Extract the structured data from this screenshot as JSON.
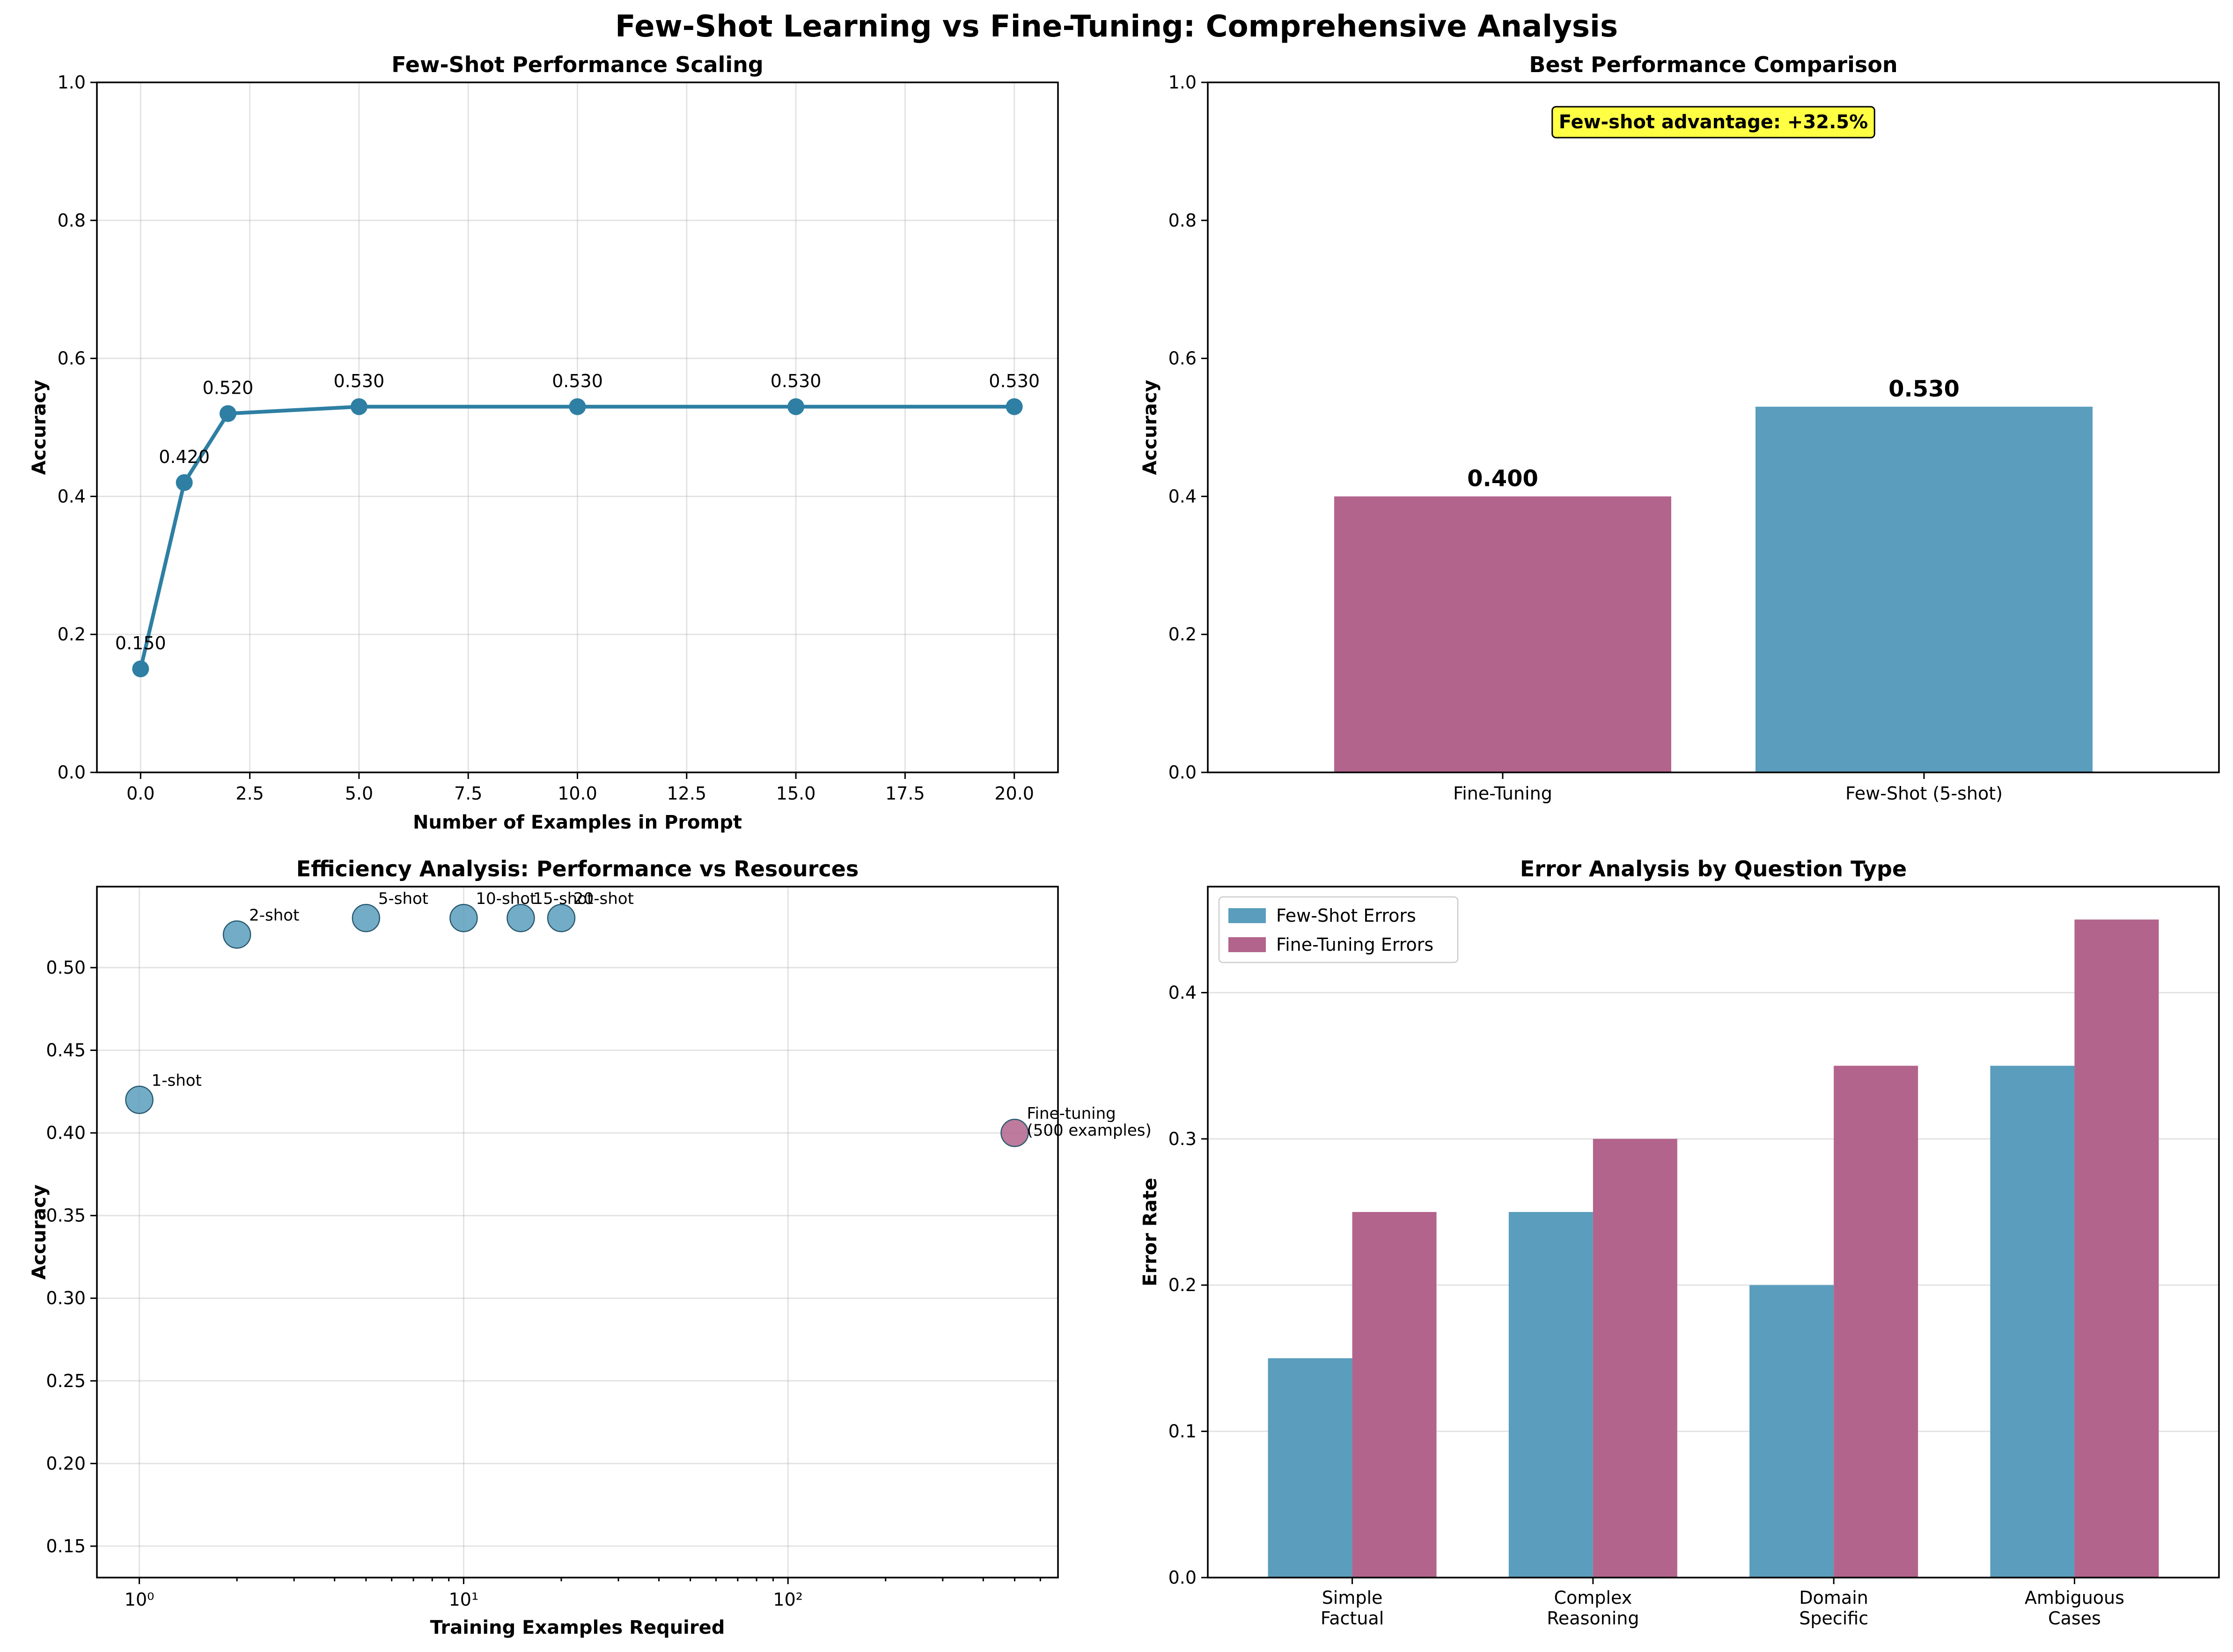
{
  "title": "Few-Shot Learning vs Fine-Tuning: Comprehensive Analysis",
  "colors": {
    "few_shot": "#5a9dbd",
    "few_shot_line": "#2e7fa3",
    "fine_tuning": "#b3648c",
    "highlight_box": "#ffff44"
  },
  "chart_data": [
    {
      "id": "scaling",
      "type": "line",
      "title": "Few-Shot Performance Scaling",
      "xlabel": "Number of Examples in Prompt",
      "ylabel": "Accuracy",
      "x": [
        0,
        1,
        2,
        5,
        10,
        15,
        20
      ],
      "y": [
        0.15,
        0.42,
        0.52,
        0.53,
        0.53,
        0.53,
        0.53
      ],
      "point_labels": [
        "0.150",
        "0.420",
        "0.520",
        "0.530",
        "0.530",
        "0.530",
        "0.530"
      ],
      "xlim": [
        -1,
        21
      ],
      "ylim": [
        0,
        1
      ],
      "xticks": [
        0,
        2.5,
        5,
        7.5,
        10,
        12.5,
        15,
        17.5,
        20
      ],
      "xtick_labels": [
        "0.0",
        "2.5",
        "5.0",
        "7.5",
        "10.0",
        "12.5",
        "15.0",
        "17.5",
        "20.0"
      ],
      "yticks": [
        0,
        0.2,
        0.4,
        0.6,
        0.8,
        1.0
      ],
      "ytick_labels": [
        "0.0",
        "0.2",
        "0.4",
        "0.6",
        "0.8",
        "1.0"
      ],
      "grid": true
    },
    {
      "id": "best",
      "type": "bar",
      "title": "Best Performance Comparison",
      "ylabel": "Accuracy",
      "categories": [
        "Fine-Tuning",
        "Few-Shot (5-shot)"
      ],
      "values": [
        0.4,
        0.53
      ],
      "value_labels": [
        "0.400",
        "0.530"
      ],
      "bar_colors": [
        "fine_tuning",
        "few_shot"
      ],
      "annotation": "Few-shot advantage: +32.5%",
      "ylim": [
        0,
        1
      ],
      "yticks": [
        0,
        0.2,
        0.4,
        0.6,
        0.8,
        1.0
      ],
      "ytick_labels": [
        "0.0",
        "0.2",
        "0.4",
        "0.6",
        "0.8",
        "1.0"
      ]
    },
    {
      "id": "efficiency",
      "type": "scatter",
      "title": "Efficiency Analysis: Performance vs Resources",
      "xlabel": "Training Examples Required",
      "ylabel": "Accuracy",
      "xscale": "log",
      "points": [
        {
          "x": 1,
          "y": 0.42,
          "label": "1-shot",
          "group": "few_shot"
        },
        {
          "x": 2,
          "y": 0.52,
          "label": "2-shot",
          "group": "few_shot"
        },
        {
          "x": 5,
          "y": 0.53,
          "label": "5-shot",
          "group": "few_shot"
        },
        {
          "x": 10,
          "y": 0.53,
          "label": "10-shot",
          "group": "few_shot"
        },
        {
          "x": 15,
          "y": 0.53,
          "label": "15-shot",
          "group": "few_shot"
        },
        {
          "x": 20,
          "y": 0.53,
          "label": "20-shot",
          "group": "few_shot"
        },
        {
          "x": 500,
          "y": 0.4,
          "label": "Fine-tuning\n(500 examples)",
          "group": "fine_tuning"
        }
      ],
      "xlim": [
        0.74,
        680
      ],
      "ylim": [
        0.131,
        0.549
      ],
      "xtick_labels": [
        "10⁰",
        "10¹",
        "10²"
      ],
      "yticks": [
        0.15,
        0.2,
        0.25,
        0.3,
        0.35,
        0.4,
        0.45,
        0.5
      ],
      "ytick_labels": [
        "0.15",
        "0.20",
        "0.25",
        "0.30",
        "0.35",
        "0.40",
        "0.45",
        "0.50"
      ],
      "grid": true
    },
    {
      "id": "errors",
      "type": "bar",
      "title": "Error Analysis by Question Type",
      "ylabel": "Error Rate",
      "categories": [
        "Simple\nFactual",
        "Complex\nReasoning",
        "Domain\nSpecific",
        "Ambiguous\nCases"
      ],
      "series": [
        {
          "name": "Few-Shot Errors",
          "values": [
            0.15,
            0.25,
            0.2,
            0.35
          ],
          "color": "few_shot"
        },
        {
          "name": "Fine-Tuning Errors",
          "values": [
            0.25,
            0.3,
            0.35,
            0.45
          ],
          "color": "fine_tuning"
        }
      ],
      "ylim": [
        0,
        0.4725
      ],
      "yticks": [
        0,
        0.1,
        0.2,
        0.3,
        0.4
      ],
      "ytick_labels": [
        "0.0",
        "0.1",
        "0.2",
        "0.3",
        "0.4"
      ],
      "legend": "top-left",
      "grid": true
    }
  ]
}
